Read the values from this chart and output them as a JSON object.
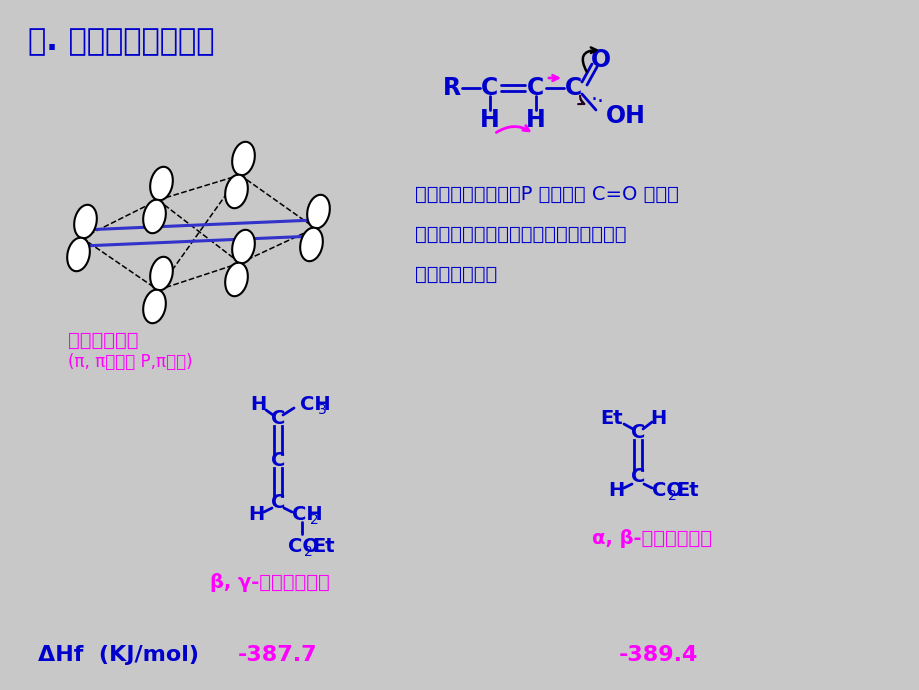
{
  "bg_color": "#c8c8c8",
  "title": "一. 不饱和羧酸的结构",
  "title_color": "#0000cc",
  "blue": "#0000cc",
  "magenta": "#ff00ff",
  "black": "#000000",
  "text1": "由于羟基氧原子上的P 电子已与 C=O 共轭，",
  "text2": "使其不再与烯键共轭，而使稳定性增加的",
  "text3": "不是十分显著。",
  "cross_label1": "交叉共轭体系",
  "cross_label2": "(π, π共轭和 P,π共轭)",
  "mol1_label": "β, γ-不饱和羧酸酯",
  "mol2_label": "α, β-不饱和羧酸酯",
  "dhf_label": "ΔHf  (KJ/mol)",
  "dhf1": "-387.7",
  "dhf2": "-389.4"
}
